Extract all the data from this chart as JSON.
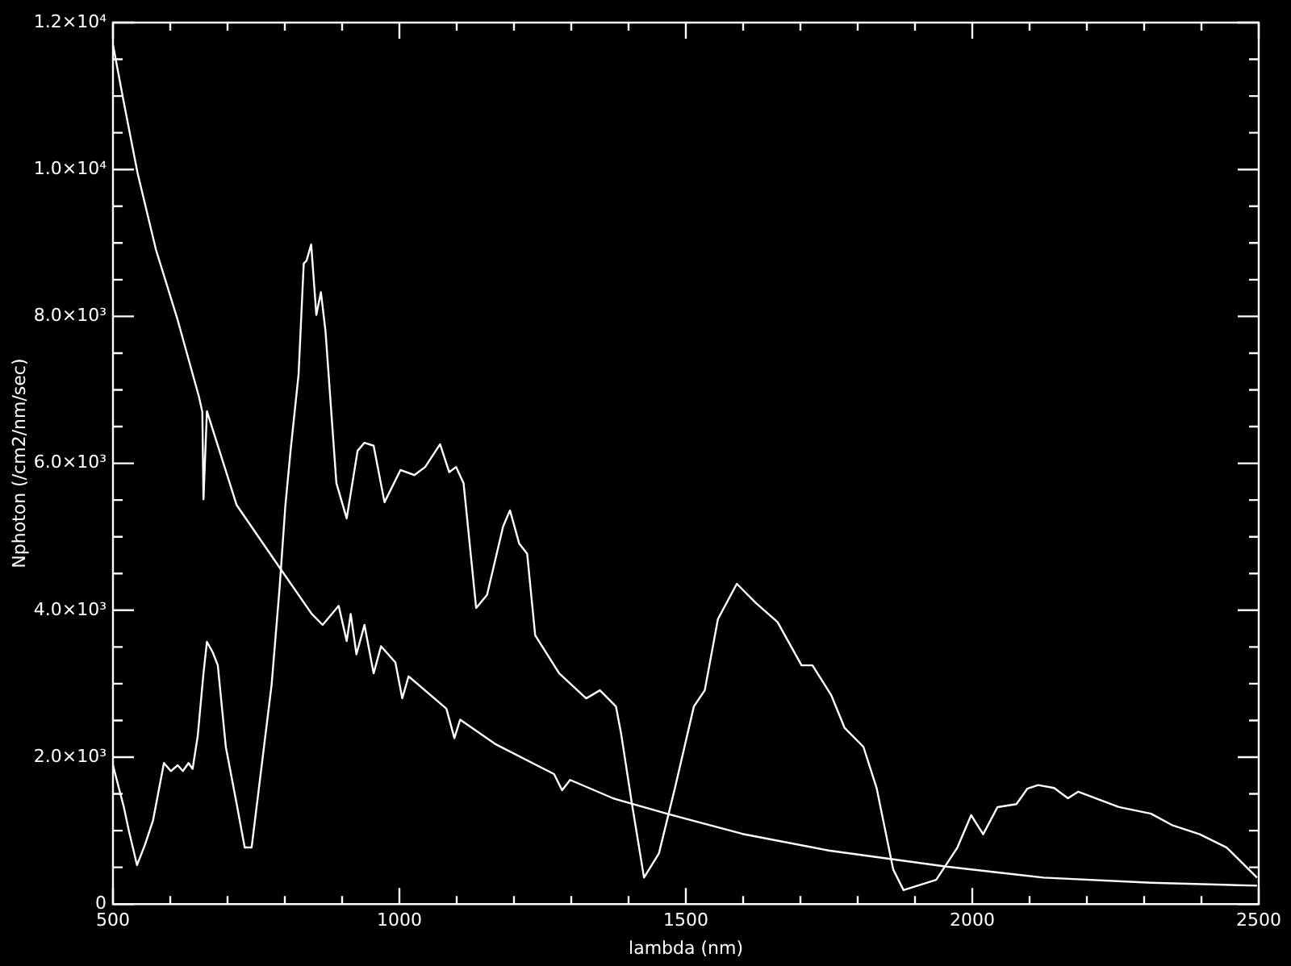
{
  "chart_data": {
    "type": "line",
    "xlabel": "lambda (nm)",
    "ylabel": "Nphoton (/cm2/nm/sec)",
    "xlim": [
      500,
      2500
    ],
    "ylim": [
      0,
      12000
    ],
    "xticks": [
      500,
      {
        "value": 600,
        "label": null
      },
      {
        "value": 700,
        "label": null
      },
      {
        "value": 800,
        "label": null
      },
      {
        "value": 900,
        "label": null
      },
      1000,
      {
        "value": 1100,
        "label": null
      },
      {
        "value": 1200,
        "label": null
      },
      {
        "value": 1300,
        "label": null
      },
      {
        "value": 1400,
        "label": null
      },
      1500,
      {
        "value": 1600,
        "label": null
      },
      {
        "value": 1700,
        "label": null
      },
      {
        "value": 1800,
        "label": null
      },
      {
        "value": 1900,
        "label": null
      },
      2000,
      {
        "value": 2100,
        "label": null
      },
      {
        "value": 2200,
        "label": null
      },
      {
        "value": 2300,
        "label": null
      },
      {
        "value": 2400,
        "label": null
      },
      2500
    ],
    "yticks": [
      0,
      {
        "value": 500,
        "label": null
      },
      {
        "value": 1000,
        "label": null
      },
      {
        "value": 1500,
        "label": null
      },
      {
        "value": 2000,
        "label": "2.0×10³"
      },
      {
        "value": 2500,
        "label": null
      },
      {
        "value": 3000,
        "label": null
      },
      {
        "value": 3500,
        "label": null
      },
      {
        "value": 4000,
        "label": "4.0×10³"
      },
      {
        "value": 4500,
        "label": null
      },
      {
        "value": 5000,
        "label": null
      },
      {
        "value": 5500,
        "label": null
      },
      {
        "value": 6000,
        "label": "6.0×10³"
      },
      {
        "value": 6500,
        "label": null
      },
      {
        "value": 7000,
        "label": null
      },
      {
        "value": 7500,
        "label": null
      },
      {
        "value": 8000,
        "label": "8.0×10³"
      },
      {
        "value": 8500,
        "label": null
      },
      {
        "value": 9000,
        "label": null
      },
      {
        "value": 9500,
        "label": null
      },
      {
        "value": 10000,
        "label": "1.0×10⁴"
      },
      {
        "value": 10500,
        "label": null
      },
      {
        "value": 11000,
        "label": null
      },
      {
        "value": 11500,
        "label": null
      },
      {
        "value": 12000,
        "label": "1.2×10⁴"
      }
    ],
    "grid": false,
    "legend": false,
    "marker": "none",
    "line_style": "solid",
    "series": [
      {
        "color": "#ffffff",
        "x": [
          500,
          519,
          543,
          575,
          613,
          650,
          656,
          658,
          664,
          716,
          791,
          847,
          866,
          894,
          908,
          915,
          925,
          939,
          955,
          968,
          993,
          1005,
          1016,
          1082,
          1096,
          1106,
          1167,
          1270,
          1284,
          1298,
          1373,
          1467,
          1599,
          1749,
          1955,
          2124,
          2312,
          2497
        ],
        "values": [
          11700,
          10910,
          9950,
          8910,
          7950,
          6910,
          6700,
          5510,
          6710,
          5430,
          4580,
          3950,
          3800,
          4060,
          3580,
          3950,
          3400,
          3800,
          3140,
          3510,
          3290,
          2800,
          3100,
          2660,
          2260,
          2510,
          2180,
          1770,
          1550,
          1690,
          1440,
          1230,
          955,
          730,
          510,
          360,
          290,
          250
        ]
      },
      {
        "color": "#ffffff",
        "x": [
          500,
          519,
          528,
          542,
          556,
          570,
          589,
          601,
          613,
          622,
          632,
          639,
          648,
          658,
          664,
          674,
          683,
          697,
          716,
          730,
          742,
          763,
          777,
          791,
          801,
          810,
          824,
          833,
          838,
          846,
          855,
          863,
          871,
          890,
          908,
          927,
          939,
          955,
          974,
          1002,
          1026,
          1045,
          1071,
          1087,
          1099,
          1112,
          1134,
          1153,
          1181,
          1193,
          1209,
          1223,
          1237,
          1279,
          1326,
          1350,
          1378,
          1387,
          1406,
          1427,
          1453,
          1481,
          1514,
          1533,
          1556,
          1589,
          1622,
          1660,
          1702,
          1721,
          1754,
          1777,
          1810,
          1833,
          1862,
          1880,
          1937,
          1974,
          1998,
          2019,
          2044,
          2077,
          2096,
          2115,
          2143,
          2167,
          2185,
          2256,
          2312,
          2350,
          2397,
          2444,
          2497
        ],
        "values": [
          1890,
          1320,
          990,
          530,
          810,
          1140,
          1920,
          1810,
          1890,
          1810,
          1920,
          1840,
          2290,
          3140,
          3570,
          3430,
          3250,
          2140,
          1360,
          770,
          770,
          2100,
          2990,
          4320,
          5430,
          6170,
          7210,
          8720,
          8760,
          8980,
          8020,
          8330,
          7800,
          5730,
          5250,
          6170,
          6280,
          6240,
          5470,
          5910,
          5840,
          5950,
          6260,
          5880,
          5950,
          5730,
          4030,
          4210,
          5140,
          5360,
          4910,
          4770,
          3660,
          3140,
          2800,
          2910,
          2690,
          2320,
          1360,
          360,
          690,
          1580,
          2690,
          2910,
          3880,
          4360,
          4100,
          3840,
          3250,
          3250,
          2840,
          2400,
          2140,
          1580,
          470,
          190,
          330,
          770,
          1210,
          950,
          1320,
          1360,
          1570,
          1620,
          1580,
          1440,
          1530,
          1320,
          1230,
          1070,
          950,
          770,
          360
        ]
      }
    ]
  }
}
